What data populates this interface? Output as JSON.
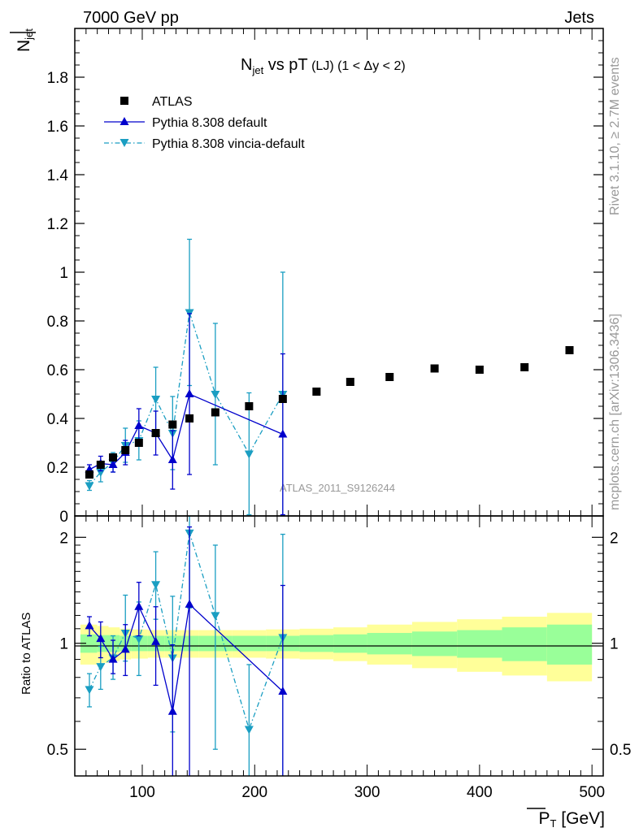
{
  "header": {
    "left": "7000 GeV pp",
    "right": "Jets"
  },
  "side": {
    "rivet": "Rivet 3.1.10, ≥ 2.7M events",
    "mcplots": "mcplots.cern.ch [arXiv:1306.3436]"
  },
  "watermark": "ATLAS_2011_S9126244",
  "colors": {
    "atlas": "#000000",
    "pythia_default": "#0000cc",
    "vincia": "#1a9ec2",
    "band_inner": "#99ff99",
    "band_outer": "#ffff99"
  },
  "chart_data": [
    {
      "type": "scatter",
      "title": {
        "main": "N",
        "sub": "jet",
        "rest": " vs pT",
        "small": " (LJ)  (1 < Δy < 2)"
      },
      "ylabel": {
        "main": "N",
        "sub": "jet"
      },
      "xlim": [
        40,
        510
      ],
      "ylim": [
        0,
        2.0
      ],
      "yticks": [
        "1.8",
        "1.6",
        "1.4",
        "1.2",
        "1",
        "0.8",
        "0.6",
        "0.4",
        "0.2",
        "0"
      ],
      "ytick_values": [
        1.8,
        1.6,
        1.4,
        1.2,
        1.0,
        0.8,
        0.6,
        0.4,
        0.2,
        0
      ],
      "legend": [
        "ATLAS",
        "Pythia 8.308 default",
        "Pythia 8.308 vincia-default"
      ],
      "series": [
        {
          "name": "ATLAS",
          "x": [
            53,
            63,
            74,
            85,
            97,
            112,
            127,
            142,
            165,
            195,
            225,
            255,
            285,
            320,
            360,
            400,
            440,
            480
          ],
          "y": [
            0.17,
            0.21,
            0.24,
            0.27,
            0.3,
            0.34,
            0.375,
            0.4,
            0.425,
            0.45,
            0.48,
            0.51,
            0.55,
            0.57,
            0.605,
            0.6,
            0.61,
            0.68
          ]
        },
        {
          "name": "Pythia 8.308 default",
          "x": [
            53,
            63,
            74,
            85,
            97,
            112,
            127,
            142,
            225
          ],
          "y": [
            0.19,
            0.215,
            0.21,
            0.26,
            0.37,
            0.34,
            0.23,
            0.5,
            0.335
          ],
          "err": [
            0.02,
            0.03,
            0.03,
            0.05,
            0.07,
            0.09,
            0.12,
            0.33,
            0.33
          ]
        },
        {
          "name": "Pythia 8.308 vincia-default",
          "x": [
            53,
            63,
            74,
            85,
            97,
            112,
            127,
            142,
            165,
            195,
            225
          ],
          "y": [
            0.125,
            0.18,
            0.22,
            0.29,
            0.31,
            0.48,
            0.34,
            0.835,
            0.5,
            0.255,
            0.5
          ],
          "err": [
            0.02,
            0.04,
            0.04,
            0.07,
            0.08,
            0.13,
            0.15,
            0.3,
            0.29,
            0.25,
            0.5
          ]
        }
      ]
    },
    {
      "type": "scatter",
      "ylabel": "Ratio to ATLAS",
      "xlabel": {
        "main": "P",
        "sub": "T",
        "unit": " [GeV]"
      },
      "xlim": [
        40,
        510
      ],
      "ylim_log": [
        0.42,
        2.3
      ],
      "xticks": [
        "100",
        "200",
        "300",
        "400",
        "500"
      ],
      "xtick_values": [
        100,
        200,
        300,
        400,
        500
      ],
      "yticks": [
        "2",
        "1",
        "0.5"
      ],
      "ytick_values": [
        2,
        1,
        0.5
      ],
      "band_edges": [
        45,
        60,
        70,
        80,
        90,
        105,
        120,
        135,
        150,
        180,
        210,
        240,
        270,
        300,
        340,
        380,
        420,
        460,
        500
      ],
      "band_inner": [
        0.06,
        0.055,
        0.055,
        0.05,
        0.05,
        0.05,
        0.05,
        0.05,
        0.05,
        0.05,
        0.05,
        0.055,
        0.06,
        0.07,
        0.08,
        0.09,
        0.11,
        0.13
      ],
      "band_outer": [
        0.13,
        0.12,
        0.11,
        0.1,
        0.095,
        0.09,
        0.09,
        0.09,
        0.09,
        0.09,
        0.095,
        0.1,
        0.11,
        0.13,
        0.15,
        0.17,
        0.19,
        0.22
      ],
      "series": [
        {
          "name": "Pythia 8.308 default",
          "x": [
            53,
            63,
            74,
            85,
            97,
            112,
            127,
            142,
            225
          ],
          "y": [
            1.12,
            1.03,
            0.9,
            0.96,
            1.27,
            1.01,
            0.64,
            1.29,
            0.73
          ],
          "err_lo": [
            0.07,
            0.12,
            0.08,
            0.15,
            0.22,
            0.25,
            0.25,
            0.9,
            0.33
          ],
          "err_hi": [
            0.07,
            0.12,
            0.12,
            0.17,
            0.22,
            0.26,
            0.35,
            0.85,
            0.73
          ]
        },
        {
          "name": "Pythia 8.308 vincia-default",
          "x": [
            53,
            63,
            74,
            85,
            97,
            112,
            127,
            142,
            165,
            195,
            225
          ],
          "y": [
            0.74,
            0.86,
            0.91,
            1.07,
            1.03,
            1.47,
            0.91,
            2.06,
            1.2,
            0.57,
            1.04
          ],
          "err_lo": [
            0.08,
            0.12,
            0.12,
            0.18,
            0.22,
            0.3,
            0.35,
            0.8,
            0.7,
            0.25,
            0.7
          ],
          "err_hi": [
            0.08,
            0.12,
            0.14,
            0.3,
            0.28,
            0.35,
            0.45,
            0.8,
            0.7,
            0.3,
            1.0
          ]
        }
      ]
    }
  ]
}
